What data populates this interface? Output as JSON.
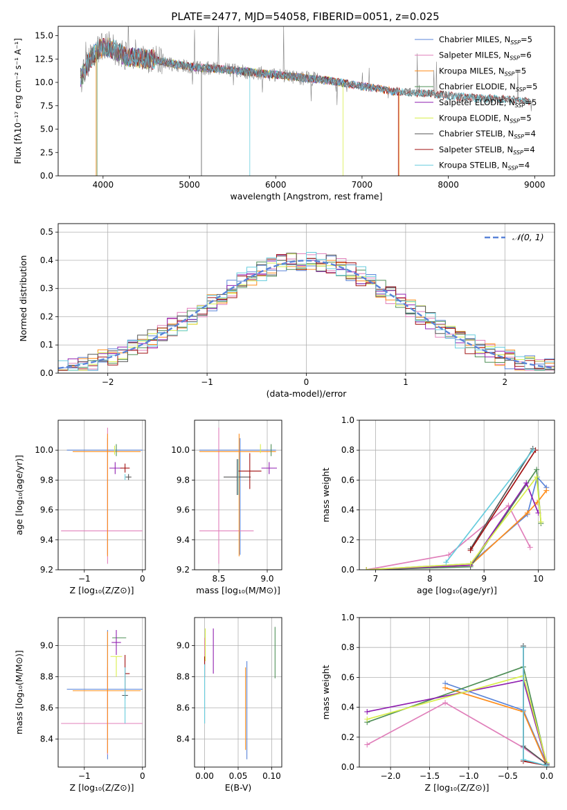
{
  "title": "PLATE=2477, MJD=54058, FIBERID=0051, z=0.025",
  "colors": {
    "chabrier_miles": "#5a84d8",
    "salpeter_miles": "#e07fba",
    "kroupa_miles": "#ff8c1a",
    "chabrier_elodie": "#4f8f57",
    "salpeter_elodie": "#8f1fb0",
    "kroupa_elodie": "#d8ee4a",
    "chabrier_stelib": "#555555",
    "salpeter_stelib": "#a01010",
    "kroupa_stelib": "#66ccdd"
  },
  "legend_entries": [
    {
      "label": "Chabrier MILES, N",
      "sub": "SSP",
      "count": "=5",
      "color_key": "chabrier_miles"
    },
    {
      "label": "Salpeter MILES, N",
      "sub": "SSP",
      "count": "=6",
      "color_key": "salpeter_miles"
    },
    {
      "label": "Kroupa MILES, N",
      "sub": "SSP",
      "count": "=5",
      "color_key": "kroupa_miles"
    },
    {
      "label": "Chabrier ELODIE, N",
      "sub": "SSP",
      "count": "=5",
      "color_key": "chabrier_elodie"
    },
    {
      "label": "Salpeter ELODIE, N",
      "sub": "SSP",
      "count": "=5",
      "color_key": "salpeter_elodie"
    },
    {
      "label": "Kroupa ELODIE, N",
      "sub": "SSP",
      "count": "=5",
      "color_key": "kroupa_elodie"
    },
    {
      "label": "Chabrier STELIB, N",
      "sub": "SSP",
      "count": "=4",
      "color_key": "chabrier_stelib"
    },
    {
      "label": "Salpeter STELIB, N",
      "sub": "SSP",
      "count": "=4",
      "color_key": "salpeter_stelib"
    },
    {
      "label": "Kroupa STELIB, N",
      "sub": "SSP",
      "count": "=4",
      "color_key": "kroupa_stelib"
    }
  ],
  "chart_data": [
    {
      "id": "spectrum",
      "type": "line",
      "title": "PLATE=2477, MJD=54058, FIBERID=0051, z=0.025",
      "xlabel": "wavelength [Angstrom, rest frame]",
      "ylabel": "Flux [fλ10⁻¹⁷ erg cm⁻² s⁻¹ A⁻¹]",
      "xlim": [
        3480,
        9230
      ],
      "ylim": [
        0,
        16
      ],
      "xticks": [
        4000,
        5000,
        6000,
        7000,
        8000,
        9000
      ],
      "yticks": [
        0.0,
        2.5,
        5.0,
        7.5,
        10.0,
        12.5,
        15.0
      ],
      "grid": false,
      "legend": "top-right",
      "data": {
        "x": [
          3750,
          3850,
          3950,
          4050,
          4150,
          4250,
          4400,
          4600,
          4800,
          5000,
          5200,
          5400,
          5600,
          5800,
          6000,
          6200,
          6400,
          6600,
          6800,
          7000,
          7200,
          7400,
          7600,
          7800,
          8000,
          8200,
          8400,
          8600,
          8800,
          9000
        ],
        "y": [
          10.5,
          12.5,
          13.6,
          13.8,
          13.4,
          12.8,
          12.6,
          12.4,
          12.0,
          11.7,
          11.5,
          11.4,
          11.2,
          11.0,
          10.8,
          10.6,
          10.4,
          10.2,
          9.9,
          9.6,
          9.3,
          9.0,
          8.9,
          8.8,
          8.6,
          8.4,
          8.3,
          8.2,
          8.1,
          8.0
        ]
      }
    },
    {
      "id": "residuals",
      "type": "line",
      "xlabel": "(data-model)/error",
      "ylabel": "Normed distribution",
      "xlim": [
        -2.5,
        2.5
      ],
      "ylim": [
        0,
        0.53
      ],
      "xticks": [
        -2,
        -1,
        0,
        1,
        2
      ],
      "yticks": [
        0.0,
        0.1,
        0.2,
        0.3,
        0.4,
        0.5
      ],
      "grid": true,
      "legend": "top-right",
      "legend_entries": [
        "𝒩(0, 1)"
      ],
      "data": {
        "bin_width": 0.1,
        "bins_from": -2.5,
        "reference": "N(0,1)"
      }
    },
    {
      "id": "age_vs_z",
      "type": "scatter",
      "xlabel": "Z [log₁₀(Z/Z⊙)]",
      "ylabel": "age  [log₁₀(age/yr)]",
      "xlim": [
        -1.45,
        0.05
      ],
      "ylim": [
        9.2,
        10.2
      ],
      "xticks": [
        -1,
        0
      ],
      "yticks": [
        9.2,
        9.4,
        9.6,
        9.8,
        10.0
      ],
      "grid": true,
      "points": [
        {
          "color_key": "chabrier_miles",
          "x": -0.6,
          "xerr": [
            0.7,
            0.6
          ],
          "y": 10.0,
          "yerr": [
            0.7,
            0.08
          ]
        },
        {
          "color_key": "salpeter_miles",
          "x": -0.6,
          "xerr": [
            0.8,
            0.6
          ],
          "y": 9.46,
          "yerr": [
            0.22,
            0.69
          ]
        },
        {
          "color_key": "kroupa_miles",
          "x": -0.6,
          "xerr": [
            0.6,
            0.57
          ],
          "y": 9.99,
          "yerr": [
            0.7,
            0.12
          ]
        },
        {
          "color_key": "chabrier_elodie",
          "x": -0.45,
          "xerr": [
            0.0,
            0.0
          ],
          "y": 10.0,
          "yerr": [
            0.04,
            0.04
          ]
        },
        {
          "color_key": "salpeter_elodie",
          "x": -0.47,
          "xerr": [
            0.1,
            0.1
          ],
          "y": 9.88,
          "yerr": [
            0.04,
            0.04
          ]
        },
        {
          "color_key": "kroupa_elodie",
          "x": -0.48,
          "xerr": [
            0.0,
            0.0
          ],
          "y": 9.99,
          "yerr": [
            0.02,
            0.04
          ]
        },
        {
          "color_key": "chabrier_stelib",
          "x": -0.24,
          "xerr": [
            0.05,
            0.05
          ],
          "y": 9.82,
          "yerr": [
            0.02,
            0.02
          ]
        },
        {
          "color_key": "salpeter_stelib",
          "x": -0.3,
          "xerr": [
            0.08,
            0.08
          ],
          "y": 9.88,
          "yerr": [
            0.03,
            0.03
          ]
        },
        {
          "color_key": "kroupa_stelib",
          "x": -0.3,
          "xerr": [
            0.0,
            0.0
          ],
          "y": 9.82,
          "yerr": [
            0.02,
            0.02
          ]
        }
      ]
    },
    {
      "id": "age_vs_mass",
      "type": "scatter",
      "xlabel": "mass [log₁₀(M/M⊙)]",
      "ylabel": "",
      "xlim": [
        8.25,
        9.15
      ],
      "ylim": [
        9.2,
        10.2
      ],
      "xticks": [
        8.5,
        9.0
      ],
      "yticks": [
        9.2,
        9.4,
        9.6,
        9.8,
        10.0
      ],
      "grid": true,
      "points": [
        {
          "color_key": "chabrier_miles",
          "x": 8.72,
          "xerr": [
            0.42,
            0.37
          ],
          "y": 10.0,
          "yerr": [
            0.7,
            0.08
          ]
        },
        {
          "color_key": "salpeter_miles",
          "x": 8.5,
          "xerr": [
            0.2,
            0.36
          ],
          "y": 9.46,
          "yerr": [
            0.22,
            0.69
          ]
        },
        {
          "color_key": "kroupa_miles",
          "x": 8.71,
          "xerr": [
            0.41,
            0.38
          ],
          "y": 9.99,
          "yerr": [
            0.7,
            0.12
          ]
        },
        {
          "color_key": "chabrier_elodie",
          "x": 9.04,
          "xerr": [
            0.0,
            0.0
          ],
          "y": 10.0,
          "yerr": [
            0.04,
            0.04
          ]
        },
        {
          "color_key": "salpeter_elodie",
          "x": 9.02,
          "xerr": [
            0.08,
            0.08
          ],
          "y": 9.88,
          "yerr": [
            0.04,
            0.04
          ]
        },
        {
          "color_key": "kroupa_elodie",
          "x": 8.93,
          "xerr": [
            0.0,
            0.0
          ],
          "y": 10.0,
          "yerr": [
            0.02,
            0.04
          ]
        },
        {
          "color_key": "chabrier_stelib",
          "x": 8.69,
          "xerr": [
            0.14,
            0.14
          ],
          "y": 9.82,
          "yerr": [
            0.12,
            0.12
          ]
        },
        {
          "color_key": "salpeter_stelib",
          "x": 8.82,
          "xerr": [
            0.12,
            0.12
          ],
          "y": 9.86,
          "yerr": [
            0.12,
            0.12
          ]
        },
        {
          "color_key": "kroupa_stelib",
          "x": 8.7,
          "xerr": [
            0.0,
            0.0
          ],
          "y": 9.82,
          "yerr": [
            0.12,
            0.12
          ]
        }
      ]
    },
    {
      "id": "weight_vs_age",
      "type": "line",
      "xlabel": "age  [log₁₀(age/yr)]",
      "ylabel": "mass weight",
      "xlim": [
        6.7,
        10.3
      ],
      "ylim": [
        0.0,
        1.0
      ],
      "xticks": [
        7,
        8,
        9,
        10
      ],
      "yticks": [
        0.0,
        0.2,
        0.4,
        0.6,
        0.8,
        1.0
      ],
      "grid": true,
      "series": [
        {
          "color_key": "chabrier_miles",
          "x": [
            6.83,
            8.75,
            9.8,
            9.98,
            10.15
          ],
          "y": [
            0.0,
            0.04,
            0.37,
            0.62,
            0.55
          ]
        },
        {
          "color_key": "salpeter_miles",
          "x": [
            6.83,
            8.35,
            9.45,
            9.85
          ],
          "y": [
            0.0,
            0.1,
            0.43,
            0.15
          ]
        },
        {
          "color_key": "kroupa_miles",
          "x": [
            6.83,
            8.75,
            9.8,
            9.98,
            10.15
          ],
          "y": [
            0.0,
            0.03,
            0.38,
            0.45,
            0.53
          ]
        },
        {
          "color_key": "chabrier_elodie",
          "x": [
            6.83,
            8.75,
            9.97,
            10.05
          ],
          "y": [
            0.0,
            0.02,
            0.67,
            0.31
          ]
        },
        {
          "color_key": "salpeter_elodie",
          "x": [
            6.83,
            8.75,
            9.78,
            10.0
          ],
          "y": [
            0.0,
            0.03,
            0.58,
            0.38
          ]
        },
        {
          "color_key": "kroupa_elodie",
          "x": [
            6.83,
            8.75,
            9.97,
            10.05
          ],
          "y": [
            0.0,
            0.04,
            0.62,
            0.32
          ]
        },
        {
          "color_key": "chabrier_stelib",
          "x": [
            8.75,
            9.9
          ],
          "y": [
            0.14,
            0.81
          ]
        },
        {
          "color_key": "salpeter_stelib",
          "x": [
            8.75,
            9.95
          ],
          "y": [
            0.13,
            0.8
          ]
        },
        {
          "color_key": "kroupa_stelib",
          "x": [
            8.3,
            9.9
          ],
          "y": [
            0.05,
            0.8
          ]
        }
      ]
    },
    {
      "id": "mass_vs_z",
      "type": "scatter",
      "xlabel": "Z [log₁₀(Z/Z⊙)]",
      "ylabel": "mass [log₁₀(M/M⊙)]",
      "xlim": [
        -1.45,
        0.05
      ],
      "ylim": [
        8.22,
        9.18
      ],
      "xticks": [
        -1,
        0
      ],
      "yticks": [
        8.4,
        8.6,
        8.8,
        9.0
      ],
      "grid": true,
      "points": [
        {
          "color_key": "chabrier_miles",
          "x": -0.6,
          "xerr": [
            0.7,
            0.6
          ],
          "y": 8.72,
          "yerr": [
            0.45,
            0.38
          ]
        },
        {
          "color_key": "salpeter_miles",
          "x": -0.6,
          "xerr": [
            0.8,
            0.6
          ],
          "y": 8.5,
          "yerr": [
            0.2,
            0.36
          ]
        },
        {
          "color_key": "kroupa_miles",
          "x": -0.6,
          "xerr": [
            0.6,
            0.57
          ],
          "y": 8.71,
          "yerr": [
            0.4,
            0.38
          ]
        },
        {
          "color_key": "chabrier_elodie",
          "x": -0.4,
          "xerr": [
            0.12,
            0.12
          ],
          "y": 9.05,
          "yerr": [
            0.0,
            0.0
          ]
        },
        {
          "color_key": "salpeter_elodie",
          "x": -0.45,
          "xerr": [
            0.08,
            0.08
          ],
          "y": 9.02,
          "yerr": [
            0.08,
            0.08
          ]
        },
        {
          "color_key": "kroupa_elodie",
          "x": -0.45,
          "xerr": [
            0.1,
            0.1
          ],
          "y": 8.93,
          "yerr": [
            0.13,
            0.0
          ]
        },
        {
          "color_key": "chabrier_stelib",
          "x": -0.3,
          "xerr": [
            0.05,
            0.05
          ],
          "y": 8.68,
          "yerr": [
            0.02,
            0.02
          ]
        },
        {
          "color_key": "salpeter_stelib",
          "x": -0.3,
          "xerr": [
            0.0,
            0.08
          ],
          "y": 8.82,
          "yerr": [
            0.12,
            0.12
          ]
        },
        {
          "color_key": "kroupa_stelib",
          "x": -0.3,
          "xerr": [
            0.0,
            0.0
          ],
          "y": 8.68,
          "yerr": [
            0.18,
            0.18
          ]
        }
      ]
    },
    {
      "id": "mass_vs_ebv",
      "type": "scatter",
      "xlabel": "E(B-V)",
      "ylabel": "",
      "xlim": [
        -0.015,
        0.115
      ],
      "ylim": [
        8.22,
        9.18
      ],
      "xticks": [
        0.0,
        0.05,
        0.1
      ],
      "yticks": [
        8.4,
        8.6,
        8.8,
        9.0
      ],
      "grid": true,
      "points": [
        {
          "color_key": "chabrier_miles",
          "x": 0.063,
          "yerr": [
            8.27,
            8.9
          ]
        },
        {
          "color_key": "salpeter_miles",
          "x": 0.0,
          "yerr": [
            8.8,
            9.05
          ]
        },
        {
          "color_key": "kroupa_miles",
          "x": 0.061,
          "yerr": [
            8.33,
            8.86
          ]
        },
        {
          "color_key": "chabrier_elodie",
          "x": 0.105,
          "yerr": [
            8.79,
            9.12
          ]
        },
        {
          "color_key": "salpeter_elodie",
          "x": 0.013,
          "yerr": [
            8.82,
            9.11
          ]
        },
        {
          "color_key": "kroupa_elodie",
          "x": 0.001,
          "yerr": [
            8.9,
            9.11
          ]
        },
        {
          "color_key": "chabrier_stelib",
          "x": 0.0,
          "yerr": [
            8.5,
            8.9
          ]
        },
        {
          "color_key": "salpeter_stelib",
          "x": 0.0,
          "yerr": [
            8.8,
            8.93
          ]
        },
        {
          "color_key": "kroupa_stelib",
          "x": 0.0,
          "yerr": [
            8.5,
            8.88
          ]
        }
      ]
    },
    {
      "id": "weight_vs_z",
      "type": "line",
      "xlabel": "Z [log₁₀(Z/Z⊙)]",
      "ylabel": "mass weight",
      "xlim": [
        -2.4,
        0.1
      ],
      "ylim": [
        0.0,
        1.0
      ],
      "xticks": [
        -2.0,
        -1.5,
        -1.0,
        -0.5,
        0.0
      ],
      "yticks": [
        0.0,
        0.2,
        0.4,
        0.6,
        0.8,
        1.0
      ],
      "grid": true,
      "series": [
        {
          "color_key": "chabrier_miles",
          "x": [
            -1.3,
            -0.3,
            0.0
          ],
          "y": [
            0.56,
            0.38,
            0.02
          ]
        },
        {
          "color_key": "salpeter_miles",
          "x": [
            -2.3,
            -1.3,
            -0.3,
            0.0
          ],
          "y": [
            0.15,
            0.43,
            0.13,
            0.02
          ]
        },
        {
          "color_key": "kroupa_miles",
          "x": [
            -1.3,
            -0.3,
            0.0
          ],
          "y": [
            0.53,
            0.37,
            0.01
          ]
        },
        {
          "color_key": "chabrier_elodie",
          "x": [
            -2.3,
            -0.3,
            0.0
          ],
          "y": [
            0.3,
            0.67,
            0.02
          ]
        },
        {
          "color_key": "salpeter_elodie",
          "x": [
            -2.3,
            -0.3,
            0.0
          ],
          "y": [
            0.37,
            0.58,
            0.02
          ]
        },
        {
          "color_key": "kroupa_elodie",
          "x": [
            -2.3,
            -0.3,
            0.0
          ],
          "y": [
            0.32,
            0.61,
            0.03
          ]
        },
        {
          "color_key": "chabrier_stelib",
          "x": [
            -0.3,
            -0.3,
            0.0
          ],
          "y": [
            0.81,
            0.14,
            0.02
          ]
        },
        {
          "color_key": "salpeter_stelib",
          "x": [
            -0.3,
            -0.3,
            0.0
          ],
          "y": [
            0.8,
            0.04,
            0.01
          ]
        },
        {
          "color_key": "kroupa_stelib",
          "x": [
            -0.3,
            -0.3,
            0.0
          ],
          "y": [
            0.8,
            0.05,
            0.01
          ]
        }
      ]
    }
  ]
}
